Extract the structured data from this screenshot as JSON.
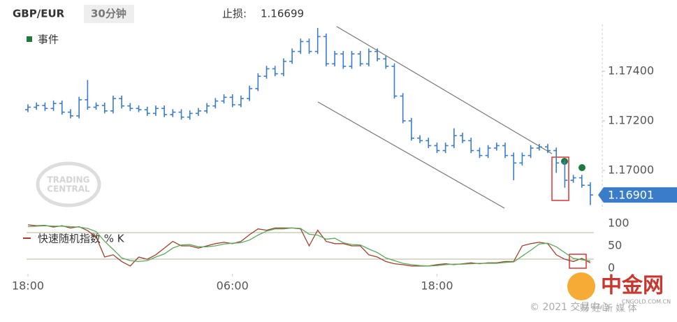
{
  "chart_data": [
    {
      "type": "ohlc",
      "title": "GBP/EUR",
      "timeframe": "30分钟",
      "stop_loss_label": "止损:",
      "stop_loss": 1.16699,
      "event_legend": "事件",
      "color": "#3a7cc8",
      "event_color": "#1e7a3c",
      "xlim": [
        0,
        66
      ],
      "ylim": [
        1.16842,
        1.17589
      ],
      "yticks": [
        {
          "value": 1.174,
          "label": "1.17400"
        },
        {
          "value": 1.172,
          "label": "1.17200"
        },
        {
          "value": 1.17,
          "label": "1.17000"
        }
      ],
      "last_price": 1.16901,
      "open": [
        1.17245,
        1.17255,
        1.17262,
        1.1725,
        1.1727,
        1.17235,
        1.1722,
        1.17285,
        1.17255,
        1.17262,
        1.1724,
        1.1729,
        1.1726,
        1.1725,
        1.17245,
        1.1723,
        1.1725,
        1.17225,
        1.17235,
        1.17215,
        1.1723,
        1.1724,
        1.1726,
        1.1728,
        1.17295,
        1.17265,
        1.1729,
        1.1733,
        1.1738,
        1.1741,
        1.1739,
        1.1744,
        1.1748,
        1.1752,
        1.1748,
        1.1754,
        1.1743,
        1.1747,
        1.1742,
        1.1747,
        1.1743,
        1.1748,
        1.1745,
        1.1742,
        1.173,
        1.172,
        1.1713,
        1.1712,
        1.171,
        1.1708,
        1.171,
        1.1714,
        1.1712,
        1.1708,
        1.1706,
        1.1709,
        1.171,
        1.1706,
        1.1703,
        1.1706,
        1.1709,
        1.17095,
        1.1708,
        1.1703,
        1.1696,
        1.1697,
        1.1694
      ],
      "high": [
        1.17267,
        1.17274,
        1.17274,
        1.17282,
        1.17282,
        1.17247,
        1.17297,
        1.17365,
        1.17274,
        1.17274,
        1.17302,
        1.17302,
        1.17272,
        1.17262,
        1.17257,
        1.17262,
        1.17262,
        1.17247,
        1.17247,
        1.17242,
        1.17252,
        1.17272,
        1.17292,
        1.17307,
        1.17307,
        1.17302,
        1.17342,
        1.17392,
        1.17422,
        1.17422,
        1.17452,
        1.17492,
        1.17532,
        1.17532,
        1.17575,
        1.17552,
        1.17482,
        1.17482,
        1.17482,
        1.17482,
        1.17492,
        1.17492,
        1.17462,
        1.17432,
        1.17312,
        1.17212,
        1.17142,
        1.17132,
        1.17112,
        1.17112,
        1.1717,
        1.17152,
        1.17132,
        1.17092,
        1.17102,
        1.17112,
        1.17112,
        1.17072,
        1.17072,
        1.17102,
        1.17107,
        1.17107,
        1.17092,
        1.17042,
        1.16982,
        1.16982,
        1.16952
      ],
      "low": [
        1.17235,
        1.17245,
        1.1724,
        1.1724,
        1.17225,
        1.1721,
        1.1721,
        1.17245,
        1.17245,
        1.1723,
        1.1723,
        1.1725,
        1.1724,
        1.17235,
        1.1722,
        1.1722,
        1.17215,
        1.17215,
        1.17205,
        1.17205,
        1.1722,
        1.1723,
        1.1725,
        1.1727,
        1.17255,
        1.17255,
        1.1728,
        1.1732,
        1.1737,
        1.1738,
        1.1738,
        1.1743,
        1.1747,
        1.1747,
        1.1747,
        1.1742,
        1.1742,
        1.1741,
        1.1741,
        1.1742,
        1.1742,
        1.1744,
        1.1741,
        1.1729,
        1.1719,
        1.1712,
        1.1711,
        1.1709,
        1.1707,
        1.1707,
        1.1709,
        1.1711,
        1.1707,
        1.1705,
        1.1705,
        1.1708,
        1.1705,
        1.1696,
        1.1702,
        1.1705,
        1.1708,
        1.1707,
        1.1699,
        1.1693,
        1.1695,
        1.1693,
        1.1686
      ],
      "close": [
        1.17255,
        1.17262,
        1.1725,
        1.1727,
        1.17235,
        1.1722,
        1.17285,
        1.17255,
        1.17262,
        1.1724,
        1.1729,
        1.1726,
        1.1725,
        1.17245,
        1.1723,
        1.1725,
        1.17225,
        1.17235,
        1.17215,
        1.1723,
        1.1724,
        1.1726,
        1.1728,
        1.17295,
        1.17265,
        1.1729,
        1.1733,
        1.1738,
        1.1741,
        1.1739,
        1.1744,
        1.1748,
        1.1752,
        1.1748,
        1.1754,
        1.1743,
        1.1747,
        1.1742,
        1.1747,
        1.1743,
        1.1748,
        1.1745,
        1.1742,
        1.173,
        1.172,
        1.1713,
        1.1712,
        1.171,
        1.1708,
        1.171,
        1.1714,
        1.1712,
        1.1708,
        1.1706,
        1.1709,
        1.171,
        1.1706,
        1.1703,
        1.1706,
        1.1709,
        1.17095,
        1.1708,
        1.1703,
        1.1696,
        1.1697,
        1.1694,
        1.16901
      ]
    },
    {
      "type": "line",
      "xlim": [
        0,
        66
      ],
      "ylim": [
        0,
        100
      ],
      "yticks": [
        100,
        50,
        0
      ],
      "xticks": [
        {
          "value": 0,
          "label": "18:00"
        },
        {
          "value": 24,
          "label": "06:00"
        },
        {
          "value": 48,
          "label": "18:00"
        }
      ],
      "series": [
        {
          "name": "快速随机指数 % K",
          "color": "#a0402a",
          "values": [
            97,
            95,
            96,
            92,
            95,
            90,
            93,
            84,
            70,
            25,
            30,
            15,
            5,
            25,
            20,
            30,
            45,
            60,
            50,
            50,
            45,
            50,
            55,
            58,
            55,
            60,
            75,
            88,
            85,
            90,
            90,
            90,
            88,
            50,
            85,
            60,
            55,
            55,
            50,
            50,
            30,
            25,
            15,
            10,
            8,
            5,
            5,
            5,
            8,
            10,
            8,
            10,
            12,
            10,
            12,
            12,
            15,
            15,
            50,
            55,
            58,
            55,
            30,
            20,
            15,
            22,
            12
          ]
        },
        {
          "color": "#5aaa5a",
          "values": [
            93,
            94,
            95,
            94,
            94,
            93,
            92,
            89,
            82,
            60,
            42,
            23,
            17,
            15,
            17,
            25,
            32,
            45,
            52,
            53,
            48,
            48,
            50,
            54,
            56,
            57,
            63,
            74,
            83,
            88,
            88,
            90,
            89,
            76,
            74,
            65,
            67,
            57,
            53,
            52,
            43,
            35,
            23,
            17,
            11,
            8,
            6,
            5,
            6,
            8,
            9,
            9,
            10,
            11,
            11,
            11,
            13,
            14,
            27,
            40,
            54,
            56,
            48,
            35,
            22,
            19,
            16
          ]
        }
      ]
    }
  ],
  "watermark": [
    "TRADING",
    "CENTRAL"
  ],
  "footer": {
    "logo": "中金网",
    "domain": "CNGOLD.COM.CN",
    "copyright": "© 2021 交易中心",
    "slogan": "财 经 新 媒 体"
  }
}
